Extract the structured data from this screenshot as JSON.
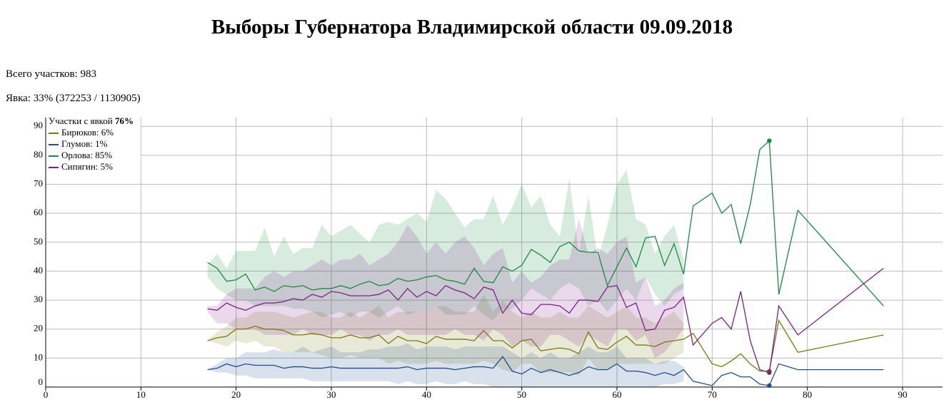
{
  "title": "Выборы Губернатора Владимирской области 09.09.2018",
  "stats": [
    "Всего участков: 983",
    "Явка: 33% (372253 / 1130905)"
  ],
  "chart_data": {
    "type": "line",
    "legend_title": "Участки с явкой",
    "legend_title_value": "76%",
    "highlight_x": 76,
    "xlim": [
      0,
      94.2
    ],
    "ylim": [
      0,
      93
    ],
    "xticks": [
      0,
      10,
      20,
      30,
      40,
      50,
      60,
      70,
      80,
      90
    ],
    "yticks": [
      0,
      10,
      20,
      30,
      40,
      50,
      60,
      70,
      80,
      90
    ],
    "grid": true,
    "x": [
      17,
      18,
      19,
      20,
      21,
      22,
      23,
      24,
      25,
      26,
      27,
      28,
      29,
      30,
      31,
      32,
      33,
      34,
      35,
      36,
      37,
      38,
      39,
      40,
      41,
      42,
      43,
      44,
      45,
      46,
      47,
      48,
      49,
      50,
      51,
      52,
      53,
      54,
      55,
      56,
      57,
      58,
      59,
      60,
      61,
      62,
      63,
      64,
      65,
      66,
      67,
      68,
      70,
      71,
      72,
      73,
      74,
      75,
      76,
      77,
      79,
      88
    ],
    "series": [
      {
        "name": "Бирюков: 6%",
        "color": "#7a7a10",
        "values": [
          16,
          17,
          17.5,
          20,
          20,
          21,
          20,
          20,
          19.5,
          18,
          18,
          18.5,
          18,
          17,
          17,
          18,
          17,
          17,
          18,
          15,
          17.5,
          16,
          16,
          15,
          17.5,
          16.5,
          16.5,
          16.5,
          16,
          19.5,
          16,
          16,
          13.5,
          16,
          16.5,
          12.5,
          13,
          13.5,
          13,
          11.5,
          19,
          13.5,
          13,
          15.5,
          17.5,
          14.5,
          14.5,
          14,
          15.5,
          16,
          16.5,
          18.5,
          8,
          7,
          9,
          11.5,
          8,
          5.5,
          5.5,
          23,
          12,
          18
        ],
        "band_low": [
          16,
          15,
          14,
          16,
          15,
          16,
          14,
          14,
          12,
          12,
          12,
          12,
          11,
          10,
          10,
          11,
          10,
          10,
          10,
          8,
          9,
          8,
          8,
          8,
          9,
          8,
          8,
          8,
          8,
          9,
          8,
          6,
          5,
          8,
          8,
          5,
          5,
          5,
          5,
          4,
          10,
          6,
          6,
          8,
          8,
          8,
          8,
          8,
          8,
          10,
          12,
          null,
          null,
          null,
          null,
          null,
          null,
          null,
          null,
          null,
          null,
          null
        ],
        "band_high": [
          16,
          19,
          21,
          24,
          24,
          26,
          26,
          26,
          25,
          24,
          25,
          26,
          26,
          24,
          24,
          26,
          24,
          26,
          28,
          24,
          26,
          26,
          26,
          26,
          28,
          28,
          26,
          26,
          26,
          32,
          26,
          30,
          26,
          24,
          26,
          24,
          24,
          26,
          24,
          24,
          28,
          26,
          24,
          26,
          28,
          24,
          24,
          22,
          24,
          26,
          22,
          null,
          null,
          null,
          null,
          null,
          null,
          null,
          null,
          null,
          null,
          null
        ]
      },
      {
        "name": "Глумов: 1%",
        "color": "#1f4e8c",
        "values": [
          6,
          6.5,
          8,
          7,
          8,
          7.5,
          7.5,
          7.5,
          6.5,
          7,
          7,
          6.5,
          6.5,
          7,
          6.5,
          6.5,
          6.5,
          6.5,
          6.5,
          6.5,
          6.5,
          7,
          6,
          6.5,
          6.5,
          6.5,
          6,
          6.5,
          7,
          7,
          6.5,
          10.5,
          5.5,
          4.5,
          6.5,
          5,
          6,
          5,
          4,
          5,
          7,
          6,
          6,
          8,
          5.5,
          5.5,
          5,
          4,
          5,
          4,
          6,
          2,
          0.5,
          4,
          5,
          3.5,
          3.5,
          1,
          0.5,
          8,
          6,
          6
        ],
        "band_low": [
          6,
          5,
          5,
          4,
          4,
          3,
          3,
          3,
          3,
          3,
          3,
          2,
          2,
          2,
          2,
          2,
          2,
          2,
          2,
          2,
          1,
          2,
          1,
          1,
          2,
          1,
          1,
          2,
          1,
          1,
          0,
          0,
          0,
          0,
          0,
          0,
          0,
          0,
          0,
          0,
          0,
          0,
          0,
          0,
          0,
          0,
          0,
          0,
          1,
          1,
          2,
          null,
          null,
          null,
          null,
          null,
          null,
          null,
          null,
          null,
          null,
          null
        ],
        "band_high": [
          6,
          8,
          10,
          10,
          12,
          12,
          12,
          13,
          12,
          12,
          14,
          12,
          13,
          14,
          12,
          12,
          12,
          13,
          13,
          14,
          14,
          15,
          13,
          14,
          14,
          14,
          13,
          14,
          14,
          14,
          14,
          14,
          12,
          10,
          12,
          10,
          12,
          10,
          10,
          12,
          14,
          12,
          12,
          14,
          10,
          10,
          10,
          8,
          9,
          9,
          7,
          null,
          null,
          null,
          null,
          null,
          null,
          null,
          null,
          null,
          null,
          null
        ]
      },
      {
        "name": "Орлова: 85%",
        "color": "#1a8a40",
        "values": [
          43,
          41,
          36.5,
          37,
          39,
          33.5,
          34.5,
          33,
          35,
          34.5,
          35,
          33.5,
          34,
          34,
          35,
          34,
          35.5,
          36.5,
          35,
          35.5,
          37.5,
          36.5,
          37,
          38,
          38.5,
          37,
          36.5,
          35.5,
          41,
          36.5,
          36,
          41.5,
          40,
          42,
          47.5,
          45.5,
          43,
          48.5,
          50,
          47,
          46.5,
          46.5,
          35,
          41.5,
          48,
          41.5,
          51.5,
          52,
          42,
          49.5,
          39,
          62.5,
          67,
          60,
          63,
          49.5,
          63,
          82,
          85,
          32,
          61,
          28
        ],
        "band_low": [
          38,
          34,
          32,
          30,
          30,
          28,
          28,
          28,
          28,
          27,
          27,
          26,
          24,
          25,
          26,
          24,
          26,
          26,
          24,
          26,
          28,
          25,
          26,
          26,
          28,
          25,
          25,
          25,
          28,
          25,
          23,
          27,
          27,
          30,
          34,
          32,
          30,
          34,
          36,
          34,
          28,
          30,
          26,
          30,
          34,
          30,
          38,
          32,
          28,
          32,
          34,
          null,
          null,
          null,
          null,
          null,
          null,
          null,
          null,
          null,
          null,
          null
        ],
        "band_high": [
          42,
          46,
          41,
          47,
          47,
          47,
          55,
          45,
          52,
          46,
          48,
          48,
          56,
          52,
          54,
          56,
          53,
          50,
          56,
          57,
          56,
          58,
          60,
          57,
          68,
          65,
          60,
          55,
          58,
          58,
          66,
          56,
          62,
          70,
          62,
          66,
          56,
          52,
          72,
          46,
          66,
          44,
          56,
          70,
          75,
          58,
          56,
          46,
          52,
          56,
          44,
          null,
          null,
          null,
          null,
          null,
          null,
          null,
          null,
          null,
          null,
          null
        ]
      },
      {
        "name": "Сипягин: 5%",
        "color": "#7b1f8a",
        "values": [
          27,
          26.5,
          29,
          27.5,
          26.5,
          28,
          29,
          29,
          29.5,
          30.5,
          30,
          32,
          31,
          33,
          32.5,
          31.5,
          31.5,
          31.5,
          32,
          33.5,
          30,
          34,
          31,
          33,
          31.5,
          35,
          33.5,
          32.5,
          30.5,
          34.5,
          33.5,
          25.5,
          30,
          25.5,
          25,
          28.5,
          28.5,
          28,
          25.5,
          30,
          30,
          29.5,
          34.5,
          35,
          27.5,
          29,
          19.5,
          20,
          26.5,
          27.5,
          31,
          14.5,
          22,
          24,
          20,
          33,
          16,
          6,
          5,
          28,
          18,
          41
        ],
        "band_low": [
          26,
          22,
          22,
          20,
          20,
          20,
          18,
          18,
          18,
          18,
          20,
          18,
          18,
          18,
          20,
          18,
          18,
          16,
          18,
          18,
          20,
          18,
          18,
          18,
          18,
          18,
          20,
          18,
          18,
          16,
          20,
          18,
          14,
          16,
          14,
          14,
          18,
          18,
          16,
          14,
          18,
          16,
          14,
          20,
          20,
          16,
          18,
          10,
          12,
          16,
          20,
          null,
          null,
          null,
          null,
          null,
          null,
          null,
          null,
          null,
          null,
          null
        ],
        "band_high": [
          28,
          28,
          32,
          34,
          34,
          34,
          38,
          40,
          38,
          40,
          40,
          42,
          44,
          42,
          44,
          44,
          46,
          42,
          44,
          46,
          50,
          56,
          52,
          46,
          50,
          46,
          50,
          52,
          48,
          42,
          46,
          48,
          36,
          40,
          36,
          38,
          42,
          44,
          44,
          58,
          46,
          48,
          46,
          50,
          52,
          36,
          38,
          28,
          30,
          34,
          36,
          null,
          null,
          null,
          null,
          null,
          null,
          null,
          null,
          null,
          null,
          null
        ]
      }
    ]
  }
}
